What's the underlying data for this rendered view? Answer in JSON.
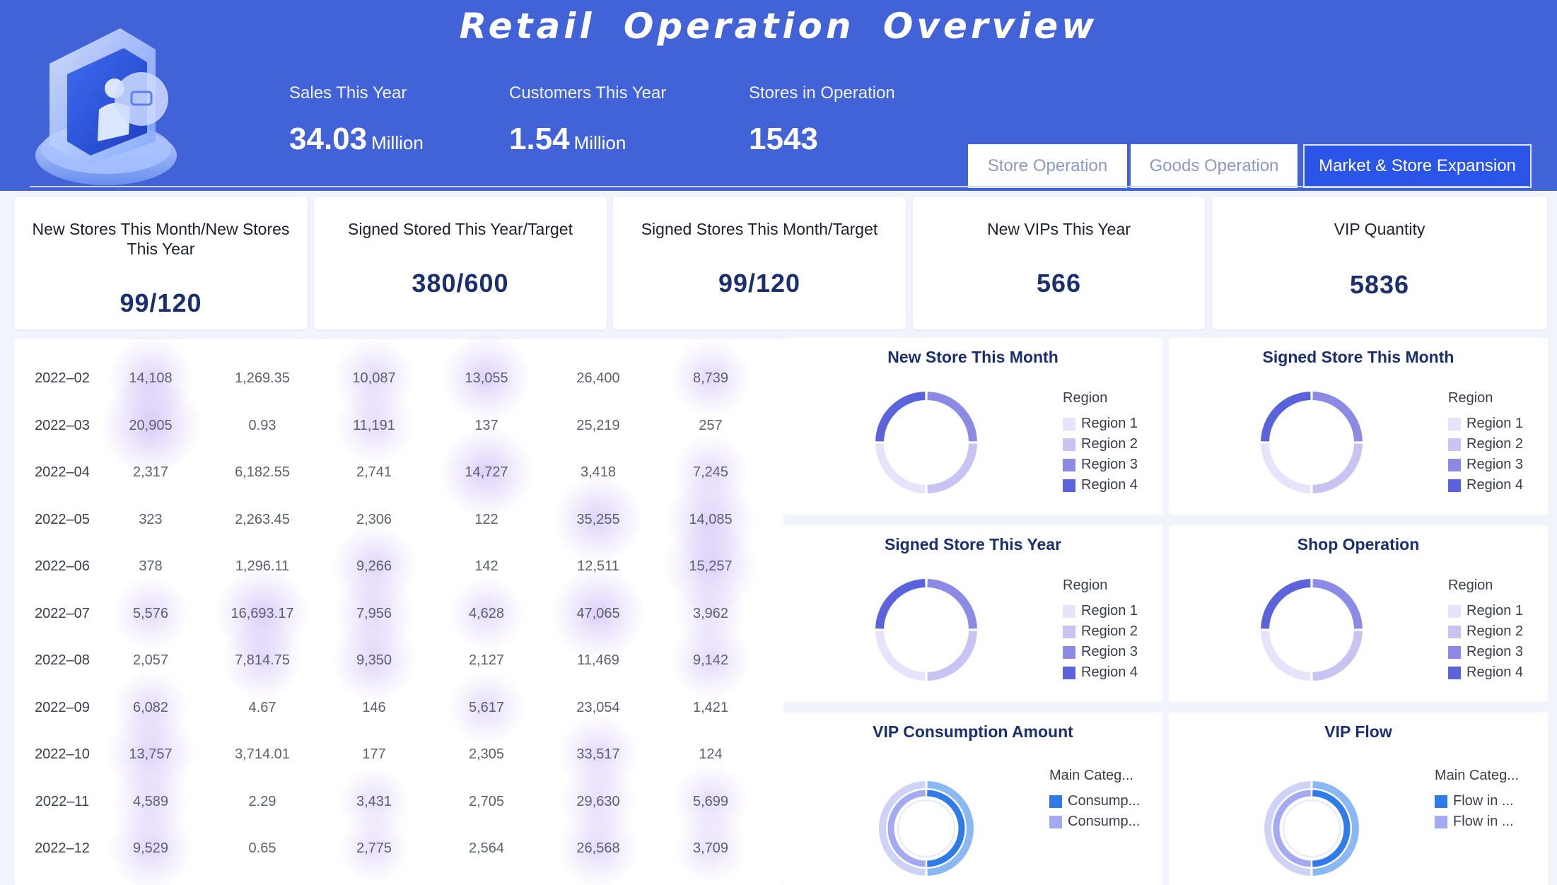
{
  "header": {
    "title": "Retail Operation Overview",
    "kpis": [
      {
        "label": "Sales This Year",
        "value": "34.03",
        "unit": "Million"
      },
      {
        "label": "Customers This Year",
        "value": "1.54",
        "unit": "Million"
      },
      {
        "label": "Stores in Operation",
        "value": "1543",
        "unit": ""
      }
    ],
    "tabs": [
      {
        "label": "Store Operation",
        "active": false
      },
      {
        "label": "Goods Operation",
        "active": false
      },
      {
        "label": "Market & Store Expansion",
        "active": true
      }
    ]
  },
  "cards": [
    {
      "label": "New Stores This Month/New Stores This Year",
      "value": "99/120"
    },
    {
      "label": "Signed Stored This Year/Target",
      "value": "380/600"
    },
    {
      "label": "Signed Stores This Month/Target",
      "value": "99/120"
    },
    {
      "label": "New VIPs This Year",
      "value": "566"
    },
    {
      "label": "VIP Quantity",
      "value": "5836"
    }
  ],
  "table": {
    "rows": [
      {
        "date": "2022–02",
        "values": [
          "14,108",
          "1,269.35",
          "10,087",
          "13,055",
          "26,400",
          "8,739"
        ]
      },
      {
        "date": "2022–03",
        "values": [
          "20,905",
          "0.93",
          "11,191",
          "137",
          "25,219",
          "257"
        ]
      },
      {
        "date": "2022–04",
        "values": [
          "2,317",
          "6,182.55",
          "2,741",
          "14,727",
          "3,418",
          "7,245"
        ]
      },
      {
        "date": "2022–05",
        "values": [
          "323",
          "2,263.45",
          "2,306",
          "122",
          "35,255",
          "14,085"
        ]
      },
      {
        "date": "2022–06",
        "values": [
          "378",
          "1,296.11",
          "9,266",
          "142",
          "12,511",
          "15,257"
        ]
      },
      {
        "date": "2022–07",
        "values": [
          "5,576",
          "16,693.17",
          "7,956",
          "4,628",
          "47,065",
          "3,962"
        ]
      },
      {
        "date": "2022–08",
        "values": [
          "2,057",
          "7,814.75",
          "9,350",
          "2,127",
          "11,469",
          "9,142"
        ]
      },
      {
        "date": "2022–09",
        "values": [
          "6,082",
          "4.67",
          "146",
          "5,617",
          "23,054",
          "1,421"
        ]
      },
      {
        "date": "2022–10",
        "values": [
          "13,757",
          "3,714.01",
          "177",
          "2,305",
          "33,517",
          "124"
        ]
      },
      {
        "date": "2022–11",
        "values": [
          "4,589",
          "2.29",
          "3,431",
          "2,705",
          "29,630",
          "5,699"
        ]
      },
      {
        "date": "2022–12",
        "values": [
          "9,529",
          "0.65",
          "2,775",
          "2,564",
          "26,568",
          "3,709"
        ]
      }
    ],
    "glow_intensity": [
      [
        0.5,
        0,
        0.4,
        0.6,
        0,
        0.4
      ],
      [
        0.85,
        0,
        0.35,
        0,
        0,
        0
      ],
      [
        0,
        0,
        0,
        0.7,
        0,
        0.3
      ],
      [
        0,
        0,
        0,
        0,
        0.6,
        0.6
      ],
      [
        0,
        0,
        0.5,
        0,
        0,
        0.7
      ],
      [
        0.3,
        0.7,
        0.4,
        0.3,
        0.7,
        0.2
      ],
      [
        0,
        0.4,
        0.5,
        0,
        0,
        0.4
      ],
      [
        0.3,
        0,
        0,
        0.3,
        0,
        0
      ],
      [
        0.6,
        0,
        0,
        0,
        0.4,
        0
      ],
      [
        0.3,
        0,
        0.2,
        0,
        0.3,
        0.3
      ],
      [
        0.5,
        0,
        0.2,
        0,
        0.4,
        0.2
      ]
    ]
  },
  "donuts": [
    {
      "title": "New Store This Month",
      "legend_title": "Region",
      "legend": [
        "Region 1",
        "Region 2",
        "Region 3",
        "Region 4"
      ],
      "slices": [
        25,
        25,
        25,
        25
      ],
      "colors": [
        "#e6e3fa",
        "#c7c3f2",
        "#8b8be6",
        "#5a62dc"
      ]
    },
    {
      "title": "Signed Store This Month",
      "legend_title": "Region",
      "legend": [
        "Region 1",
        "Region 2",
        "Region 3",
        "Region 4"
      ],
      "slices": [
        25,
        25,
        25,
        25
      ],
      "colors": [
        "#e6e3fa",
        "#c7c3f2",
        "#8b8be6",
        "#5a62dc"
      ]
    },
    {
      "title": "Signed Store This Year",
      "legend_title": "Region",
      "legend": [
        "Region 1",
        "Region 2",
        "Region 3",
        "Region 4"
      ],
      "slices": [
        25,
        25,
        25,
        25
      ],
      "colors": [
        "#e6e3fa",
        "#c7c3f2",
        "#8b8be6",
        "#5a62dc"
      ]
    },
    {
      "title": "Shop Operation",
      "legend_title": "Region",
      "legend": [
        "Region 1",
        "Region 2",
        "Region 3",
        "Region 4"
      ],
      "slices": [
        25,
        25,
        25,
        25
      ],
      "colors": [
        "#e6e3fa",
        "#c7c3f2",
        "#8b8be6",
        "#5a62dc"
      ]
    },
    {
      "title": "VIP Consumption Amount",
      "legend_title": "Main Categ...",
      "legend": [
        "Consump...",
        "Consump..."
      ],
      "slices": [
        50,
        50
      ],
      "colors": [
        "#2f7bea",
        "#a4aaf2"
      ]
    },
    {
      "title": "VIP Flow",
      "legend_title": "Main Categ...",
      "legend": [
        "Flow in ...",
        "Flow in ..."
      ],
      "slices": [
        50,
        50
      ],
      "colors": [
        "#2f7bea",
        "#a4aaf2"
      ]
    }
  ]
}
